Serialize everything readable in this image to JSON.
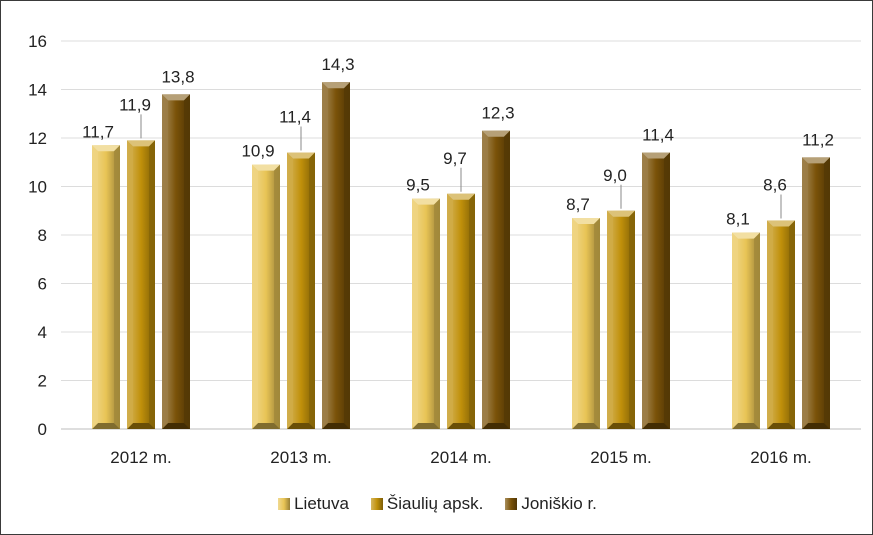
{
  "chart_data": {
    "type": "bar",
    "categories": [
      "2012 m.",
      "2013 m.",
      "2014 m.",
      "2015 m.",
      "2016 m."
    ],
    "series": [
      {
        "name": "Lietuva",
        "values": [
          11.7,
          10.9,
          9.5,
          8.7,
          8.1
        ],
        "labels": [
          "11,7",
          "10,9",
          "9,5",
          "8,7",
          "8,1"
        ],
        "color": "#e8c455"
      },
      {
        "name": "Šiaulių apsk.",
        "values": [
          11.9,
          11.4,
          9.7,
          9.0,
          8.6
        ],
        "labels": [
          "11,9",
          "11,4",
          "9,7",
          "9,0",
          "8,6"
        ],
        "color": "#c0900a"
      },
      {
        "name": "Joniškio r.",
        "values": [
          13.8,
          14.3,
          12.3,
          11.4,
          11.2
        ],
        "labels": [
          "13,8",
          "14,3",
          "12,3",
          "11,4",
          "11,2"
        ],
        "color": "#7a5208"
      }
    ],
    "y_ticks": [
      "0",
      "2",
      "4",
      "6",
      "8",
      "10",
      "12",
      "14",
      "16"
    ],
    "ylim": [
      0,
      16
    ],
    "grid": true,
    "legend_position": "bottom"
  }
}
